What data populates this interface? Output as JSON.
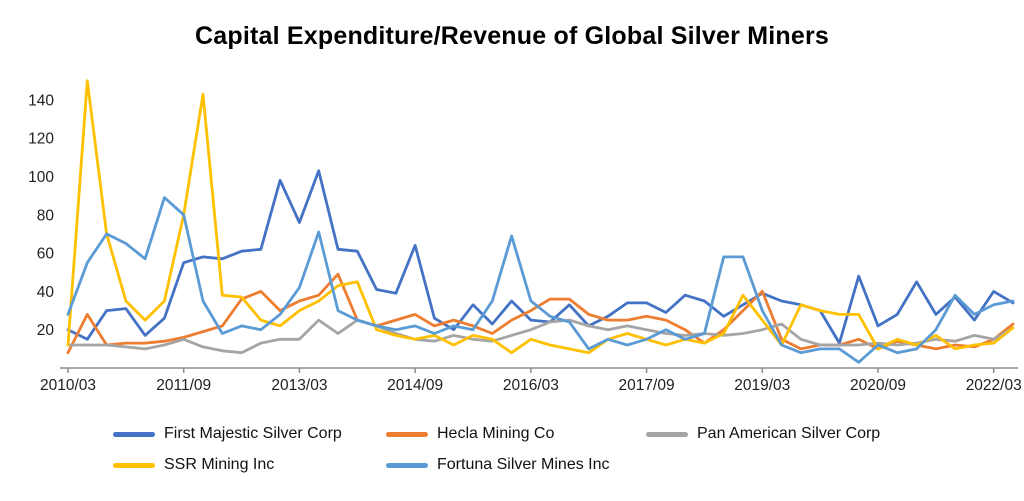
{
  "chart_data": {
    "type": "line",
    "title": "Capital Expenditure/Revenue of Global Silver Miners",
    "grid": false,
    "legend_position": "bottom",
    "ylim": [
      0,
      155
    ],
    "y_ticks": [
      20,
      40,
      60,
      80,
      100,
      120,
      140
    ],
    "x_tick_labels": [
      "2010/03",
      "2011/09",
      "2013/03",
      "2014/09",
      "2016/03",
      "2017/09",
      "2019/03",
      "2020/09",
      "2022/03"
    ],
    "x": [
      "2010/03",
      "2010/06",
      "2010/09",
      "2010/12",
      "2011/03",
      "2011/06",
      "2011/09",
      "2011/12",
      "2012/03",
      "2012/06",
      "2012/09",
      "2012/12",
      "2013/03",
      "2013/06",
      "2013/09",
      "2013/12",
      "2014/03",
      "2014/06",
      "2014/09",
      "2014/12",
      "2015/03",
      "2015/06",
      "2015/09",
      "2015/12",
      "2016/03",
      "2016/06",
      "2016/09",
      "2016/12",
      "2017/03",
      "2017/06",
      "2017/09",
      "2017/12",
      "2018/03",
      "2018/06",
      "2018/09",
      "2018/12",
      "2019/03",
      "2019/06",
      "2019/09",
      "2019/12",
      "2020/03",
      "2020/06",
      "2020/09",
      "2020/12",
      "2021/03",
      "2021/06",
      "2021/09",
      "2021/12",
      "2022/03",
      "2022/06"
    ],
    "series": [
      {
        "name": "First Majestic Silver Corp",
        "color": "#4472C4",
        "values": [
          20,
          15,
          30,
          31,
          17,
          26,
          55,
          58,
          57,
          61,
          62,
          98,
          76,
          103,
          62,
          61,
          41,
          39,
          64,
          26,
          20,
          33,
          23,
          35,
          25,
          24,
          33,
          22,
          27,
          34,
          34,
          29,
          38,
          35,
          27,
          33,
          39,
          35,
          33,
          30,
          13,
          48,
          22,
          28,
          45,
          28,
          37,
          25,
          40,
          34
        ]
      },
      {
        "name": "Hecla Mining Co",
        "color": "#ED7D31",
        "values": [
          8,
          28,
          12,
          13,
          13,
          14,
          16,
          19,
          22,
          36,
          40,
          30,
          35,
          38,
          49,
          25,
          22,
          25,
          28,
          22,
          25,
          22,
          18,
          25,
          30,
          36,
          36,
          28,
          25,
          25,
          27,
          25,
          20,
          13,
          20,
          30,
          40,
          15,
          10,
          12,
          12,
          15,
          10,
          14,
          12,
          10,
          12,
          11,
          15,
          23
        ]
      },
      {
        "name": "Pan American Silver Corp",
        "color": "#A5A5A5",
        "values": [
          12,
          12,
          12,
          11,
          10,
          12,
          15,
          11,
          9,
          8,
          13,
          15,
          15,
          25,
          18,
          25,
          22,
          18,
          15,
          14,
          17,
          15,
          14,
          17,
          20,
          24,
          25,
          22,
          20,
          22,
          20,
          18,
          17,
          18,
          17,
          18,
          20,
          23,
          15,
          12,
          12,
          12,
          13,
          12,
          13,
          15,
          14,
          17,
          15,
          21
        ]
      },
      {
        "name": "SSR Mining Inc",
        "color": "#FFC000",
        "values": [
          12,
          150,
          70,
          35,
          25,
          35,
          80,
          143,
          38,
          37,
          25,
          22,
          30,
          35,
          43,
          45,
          20,
          17,
          15,
          17,
          12,
          17,
          15,
          8,
          15,
          12,
          10,
          8,
          15,
          18,
          15,
          12,
          15,
          13,
          18,
          38,
          25,
          12,
          33,
          30,
          28,
          28,
          10,
          15,
          12,
          17,
          10,
          12,
          13,
          21
        ]
      },
      {
        "name": "Fortuna Silver Mines Inc",
        "color": "#5B9BD5",
        "values": [
          28,
          55,
          70,
          65,
          57,
          89,
          80,
          35,
          18,
          22,
          20,
          28,
          42,
          71,
          30,
          25,
          22,
          20,
          22,
          18,
          22,
          20,
          35,
          69,
          35,
          27,
          24,
          10,
          15,
          12,
          15,
          20,
          15,
          18,
          58,
          58,
          30,
          12,
          8,
          10,
          10,
          3,
          12,
          8,
          10,
          20,
          38,
          28,
          33,
          35
        ]
      }
    ]
  }
}
